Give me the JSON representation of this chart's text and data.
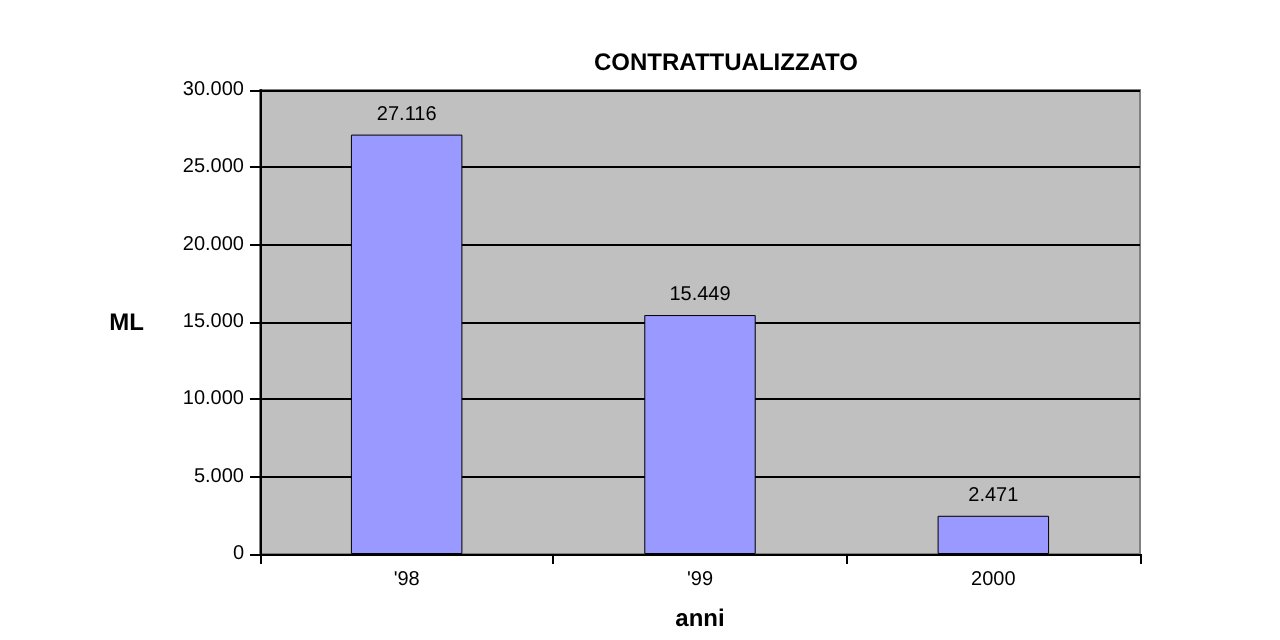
{
  "chart_data": {
    "type": "bar",
    "title": "CONTRATTUALIZZATO",
    "xlabel": "anni",
    "ylabel": "ML",
    "categories": [
      "'98",
      "'99",
      "2000"
    ],
    "values": [
      27116,
      15449,
      2471
    ],
    "value_labels": [
      "27.116",
      "15.449",
      "2.471"
    ],
    "color": "#9999ff",
    "ylim": [
      0,
      30000
    ],
    "yticks": [
      {
        "value": 0,
        "label": "0"
      },
      {
        "value": 5000,
        "label": "5.000"
      },
      {
        "value": 10000,
        "label": "10.000"
      },
      {
        "value": 15000,
        "label": "15.000"
      },
      {
        "value": 20000,
        "label": "20.000"
      },
      {
        "value": 25000,
        "label": "25.000"
      },
      {
        "value": 30000,
        "label": "30.000"
      }
    ],
    "grid": true
  }
}
